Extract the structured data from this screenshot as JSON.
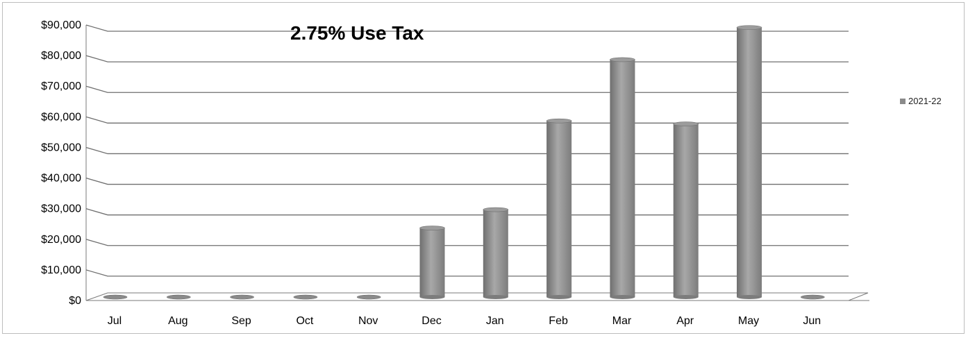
{
  "chart_data": {
    "type": "bar",
    "title": "2.75% Use Tax",
    "categories": [
      "Jul",
      "Aug",
      "Sep",
      "Oct",
      "Nov",
      "Dec",
      "Jan",
      "Feb",
      "Mar",
      "Apr",
      "May",
      "Jun"
    ],
    "series": [
      {
        "name": "2021-22",
        "values": [
          0,
          0,
          0,
          0,
          0,
          23000,
          29000,
          58000,
          78000,
          57000,
          88500,
          0
        ]
      }
    ],
    "ylim": [
      0,
      90000
    ],
    "yticks": [
      "$0",
      "$10,000",
      "$20,000",
      "$30,000",
      "$40,000",
      "$50,000",
      "$60,000",
      "$70,000",
      "$80,000",
      "$90,000"
    ],
    "grid": true,
    "legend_position": "right",
    "colors": {
      "bar": "#8c8c8c",
      "grid": "#7a7a7a"
    }
  }
}
